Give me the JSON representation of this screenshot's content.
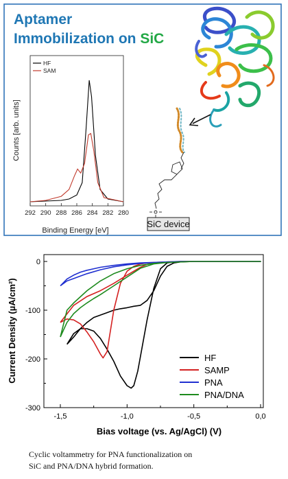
{
  "panel_top": {
    "title_line1": "Aptamer",
    "title_line2_prefix": "Immobilization on ",
    "title_line2_highlight": "SiC",
    "device_label": "SiC device",
    "colors": {
      "title_blue": "#1f77b4",
      "title_green": "#22a845",
      "frame": "#2f73b8"
    }
  },
  "xps_chart": {
    "type": "line",
    "title": "",
    "xlabel": "Binding Energy [eV]",
    "ylabel": "Counts [arb. units]",
    "x_reversed": true,
    "xlim": [
      292,
      280
    ],
    "xticks": [
      "292",
      "290",
      "288",
      "286",
      "284",
      "282",
      "280"
    ],
    "legend_position": "top-left",
    "series": [
      {
        "name": "HF",
        "color": "#000000",
        "points": [
          [
            292,
            0.01
          ],
          [
            290,
            0.015
          ],
          [
            288,
            0.02
          ],
          [
            287,
            0.03
          ],
          [
            286,
            0.06
          ],
          [
            285.3,
            0.15
          ],
          [
            284.8,
            0.55
          ],
          [
            284.4,
            0.9
          ],
          [
            284.1,
            0.78
          ],
          [
            283.6,
            0.35
          ],
          [
            283,
            0.1
          ],
          [
            282,
            0.03
          ],
          [
            280,
            0.01
          ]
        ]
      },
      {
        "name": "SAM",
        "color": "#c0392b",
        "points": [
          [
            292,
            0.01
          ],
          [
            290,
            0.02
          ],
          [
            288,
            0.05
          ],
          [
            287,
            0.1
          ],
          [
            286.3,
            0.2
          ],
          [
            285.9,
            0.25
          ],
          [
            285.5,
            0.22
          ],
          [
            285,
            0.29
          ],
          [
            284.5,
            0.5
          ],
          [
            284.2,
            0.51
          ],
          [
            283.8,
            0.38
          ],
          [
            283.3,
            0.15
          ],
          [
            282.5,
            0.04
          ],
          [
            280,
            0.01
          ]
        ]
      }
    ]
  },
  "chart_data": {
    "type": "line",
    "title": "",
    "xlabel": "Bias voltage (vs. Ag/AgCl) (V)",
    "ylabel": "Current Density (µA/cm²)",
    "xlim": [
      -1.6,
      0.0
    ],
    "ylim": [
      -300,
      15
    ],
    "xticks": [
      "-1,5",
      "-1,0",
      "-0,5",
      "0,0"
    ],
    "yticks": [
      "0",
      "-100",
      "-200",
      "-300"
    ],
    "legend_position": "bottom-right",
    "series": [
      {
        "name": "HF",
        "color": "#000000",
        "x": [
          -1.45,
          -1.4,
          -1.35,
          -1.3,
          -1.25,
          -1.2,
          -1.15,
          -1.1,
          -1.05,
          -1.0,
          -0.97,
          -0.95,
          -0.92,
          -0.9,
          -0.85,
          -0.8,
          -0.75,
          -0.7,
          -0.65,
          -0.6,
          -0.5,
          -0.3,
          0.0,
          -0.3,
          -0.5,
          -0.6,
          -0.65,
          -0.7,
          -0.75,
          -0.8,
          -0.85,
          -0.9,
          -0.95,
          -1.0,
          -1.05,
          -1.1,
          -1.15,
          -1.2,
          -1.25,
          -1.3,
          -1.35,
          -1.4,
          -1.45
        ],
        "y": [
          -170,
          -148,
          -138,
          -138,
          -143,
          -158,
          -180,
          -205,
          -235,
          -255,
          -260,
          -255,
          -225,
          -195,
          -120,
          -55,
          -15,
          -3,
          -1,
          0,
          0,
          0,
          0,
          0,
          0,
          -1,
          -3,
          -10,
          -30,
          -60,
          -80,
          -90,
          -92,
          -95,
          -97,
          -100,
          -105,
          -110,
          -115,
          -125,
          -138,
          -155,
          -170
        ]
      },
      {
        "name": "SAMP",
        "color": "#d42020",
        "x": [
          -1.5,
          -1.45,
          -1.4,
          -1.35,
          -1.3,
          -1.25,
          -1.2,
          -1.18,
          -1.15,
          -1.1,
          -1.05,
          -1.0,
          -0.95,
          -0.9,
          -0.85,
          -0.8,
          -0.7,
          -0.6,
          -0.3,
          0.0,
          -0.3,
          -0.6,
          -0.7,
          -0.8,
          -0.85,
          -0.9,
          -1.0,
          -1.1,
          -1.2,
          -1.3,
          -1.4,
          -1.5
        ],
        "y": [
          -125,
          -118,
          -120,
          -128,
          -145,
          -165,
          -190,
          -198,
          -185,
          -100,
          -45,
          -20,
          -10,
          -5,
          -3,
          -2,
          -1,
          0,
          0,
          0,
          0,
          0,
          -1,
          -3,
          -6,
          -12,
          -28,
          -45,
          -60,
          -72,
          -90,
          -125
        ]
      },
      {
        "name": "PNA",
        "color": "#1f2fd0",
        "x": [
          -1.5,
          -1.45,
          -1.4,
          -1.35,
          -1.3,
          -1.2,
          -1.1,
          -1.0,
          -0.9,
          -0.8,
          -0.7,
          -0.6,
          -0.5,
          -0.3,
          0.0,
          -0.3,
          -0.5,
          -0.6,
          -0.7,
          -0.8,
          -0.9,
          -1.0,
          -1.1,
          -1.2,
          -1.3,
          -1.35,
          -1.4,
          -1.45,
          -1.5
        ],
        "y": [
          -50,
          -40,
          -35,
          -30,
          -25,
          -17,
          -11,
          -7,
          -4,
          -2,
          -1,
          0,
          0,
          0,
          0,
          0,
          0,
          0,
          -1,
          -2,
          -3,
          -5,
          -8,
          -12,
          -18,
          -22,
          -28,
          -36,
          -50
        ]
      },
      {
        "name": "PNA/DNA",
        "color": "#1d8a1d",
        "x": [
          -1.5,
          -1.45,
          -1.4,
          -1.35,
          -1.3,
          -1.25,
          -1.2,
          -1.1,
          -1.0,
          -0.9,
          -0.8,
          -0.7,
          -0.6,
          -0.5,
          -0.3,
          0.0,
          -0.3,
          -0.5,
          -0.6,
          -0.7,
          -0.8,
          -0.9,
          -1.0,
          -1.1,
          -1.2,
          -1.3,
          -1.4,
          -1.45,
          -1.5
        ],
        "y": [
          -155,
          -125,
          -107,
          -95,
          -85,
          -76,
          -68,
          -50,
          -32,
          -14,
          -5,
          -2,
          -1,
          0,
          0,
          0,
          0,
          0,
          -1,
          -2,
          -4,
          -8,
          -15,
          -25,
          -40,
          -60,
          -85,
          -100,
          -155
        ]
      }
    ]
  },
  "caption": {
    "line1": "Cyclic voltammetry for PNA functionalization on",
    "line2": "SiC and PNA/DNA hybrid formation."
  }
}
